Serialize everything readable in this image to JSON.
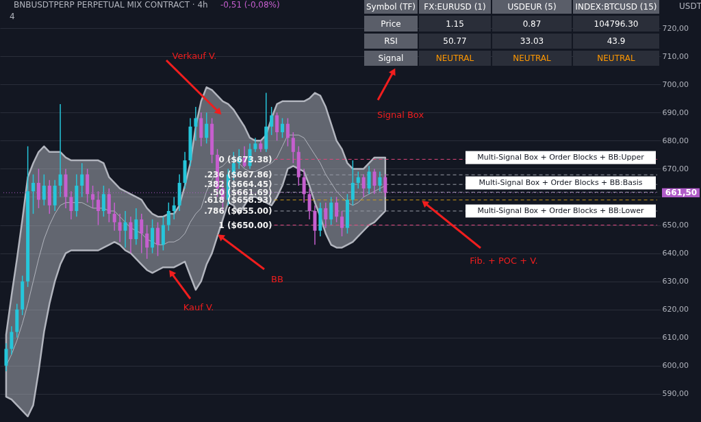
{
  "chart_data": {
    "type": "candlestick",
    "title": "BNBUSDTPERP PERPETUAL MIX CONTRACT · 4h",
    "categories": [
      null,
      null,
      null,
      null,
      null,
      null,
      null,
      null,
      null,
      null,
      null,
      null,
      null,
      null,
      null,
      null,
      null,
      null,
      null,
      null,
      null,
      null,
      null,
      null,
      null,
      null,
      null,
      null,
      null,
      null,
      null,
      null,
      null,
      null,
      null,
      null,
      null,
      null,
      null,
      null,
      null,
      null,
      null,
      null,
      null,
      null,
      null,
      null,
      null,
      null,
      null,
      null,
      null,
      null,
      null,
      null,
      null,
      null,
      null,
      null,
      null,
      null,
      null,
      null,
      null,
      null,
      null,
      null,
      null,
      null,
      null
    ],
    "ohlc": [
      [
        600,
        608,
        598,
        606
      ],
      [
        606,
        614,
        604,
        612
      ],
      [
        612,
        622,
        610,
        620
      ],
      [
        620,
        632,
        618,
        630
      ],
      [
        630,
        678,
        628,
        662
      ],
      [
        662,
        668,
        654,
        665
      ],
      [
        665,
        670,
        656,
        659
      ],
      [
        659,
        668,
        657,
        664
      ],
      [
        664,
        666,
        654,
        657
      ],
      [
        657,
        666,
        655,
        664
      ],
      [
        664,
        693,
        660,
        668
      ],
      [
        668,
        670,
        656,
        660
      ],
      [
        660,
        662,
        652,
        655
      ],
      [
        655,
        668,
        653,
        664
      ],
      [
        664,
        672,
        660,
        668
      ],
      [
        668,
        670,
        658,
        661
      ],
      [
        661,
        664,
        656,
        659
      ],
      [
        659,
        662,
        650,
        655
      ],
      [
        655,
        664,
        653,
        661
      ],
      [
        661,
        663,
        651,
        654
      ],
      [
        654,
        658,
        648,
        651
      ],
      [
        651,
        654,
        644,
        648
      ],
      [
        648,
        655,
        642,
        651
      ],
      [
        651,
        653,
        640,
        645
      ],
      [
        645,
        656,
        643,
        652
      ],
      [
        652,
        654,
        640,
        647
      ],
      [
        647,
        650,
        638,
        642
      ],
      [
        642,
        652,
        640,
        649
      ],
      [
        649,
        651,
        639,
        643
      ],
      [
        643,
        653,
        641,
        650
      ],
      [
        650,
        658,
        648,
        655
      ],
      [
        655,
        660,
        652,
        657
      ],
      [
        657,
        668,
        655,
        665
      ],
      [
        665,
        676,
        663,
        673
      ],
      [
        673,
        688,
        671,
        685
      ],
      [
        685,
        692,
        680,
        688
      ],
      [
        688,
        690,
        678,
        681
      ],
      [
        681,
        690,
        679,
        686
      ],
      [
        686,
        688,
        672,
        675
      ],
      [
        675,
        677,
        660,
        663
      ],
      [
        663,
        666,
        655,
        659
      ],
      [
        659,
        670,
        657,
        668
      ],
      [
        668,
        676,
        666,
        672
      ],
      [
        672,
        677,
        670,
        674
      ],
      [
        674,
        678,
        670.5,
        671
      ],
      [
        671,
        679,
        670,
        677
      ],
      [
        677,
        681,
        676,
        679
      ],
      [
        679,
        680,
        676,
        677
      ],
      [
        677,
        697,
        676,
        685
      ],
      [
        685,
        692,
        682,
        689
      ],
      [
        689,
        690,
        680,
        683
      ],
      [
        683,
        688,
        681,
        686
      ],
      [
        686,
        688,
        678,
        681
      ],
      [
        681,
        683,
        672,
        676
      ],
      [
        676,
        678,
        664,
        667
      ],
      [
        667,
        670,
        658,
        661
      ],
      [
        661,
        663,
        652,
        655
      ],
      [
        655,
        657,
        643,
        648
      ],
      [
        648,
        658,
        646,
        656
      ],
      [
        656,
        658,
        649,
        652
      ],
      [
        652,
        660,
        650,
        658
      ],
      [
        658,
        660,
        651,
        653
      ],
      [
        653,
        655,
        646,
        649
      ],
      [
        649,
        661,
        647,
        659
      ],
      [
        659,
        673,
        657,
        665
      ],
      [
        665,
        669,
        663,
        667
      ],
      [
        667,
        668,
        660,
        663
      ],
      [
        663,
        671,
        661,
        669
      ],
      [
        669,
        670,
        661,
        664
      ],
      [
        664,
        669,
        662,
        667
      ],
      [
        667,
        668,
        660,
        661.5
      ]
    ],
    "colors": [
      "#26c6da",
      "#26c6da",
      "#26c6da",
      "#26c6da",
      "#26c6da",
      "#26c6da",
      "#c65fcf",
      "#26c6da",
      "#c65fcf",
      "#26c6da",
      "#26c6da",
      "#c65fcf",
      "#c65fcf",
      "#26c6da",
      "#26c6da",
      "#c65fcf",
      "#c65fcf",
      "#c65fcf",
      "#26c6da",
      "#c65fcf",
      "#c65fcf",
      "#c65fcf",
      "#26c6da",
      "#c65fcf",
      "#26c6da",
      "#c65fcf",
      "#c65fcf",
      "#26c6da",
      "#c65fcf",
      "#26c6da",
      "#26c6da",
      "#26c6da",
      "#26c6da",
      "#26c6da",
      "#26c6da",
      "#26c6da",
      "#c65fcf",
      "#26c6da",
      "#c65fcf",
      "#c65fcf",
      "#c65fcf",
      "#26c6da",
      "#26c6da",
      "#26c6da",
      "#c65fcf",
      "#26c6da",
      "#26c6da",
      "#c65fcf",
      "#26c6da",
      "#26c6da",
      "#c65fcf",
      "#26c6da",
      "#c65fcf",
      "#c65fcf",
      "#c65fcf",
      "#c65fcf",
      "#c65fcf",
      "#c65fcf",
      "#26c6da",
      "#c65fcf",
      "#26c6da",
      "#c65fcf",
      "#c65fcf",
      "#26c6da",
      "#26c6da",
      "#26c6da",
      "#c65fcf",
      "#26c6da",
      "#c65fcf",
      "#26c6da",
      "#c65fcf"
    ],
    "series": [
      {
        "type": "line",
        "color": "#b2b5be",
        "values": [
          600,
          604,
          609,
          615,
          622,
          630,
          638,
          645,
          650,
          654,
          657,
          658,
          658,
          658,
          658,
          657,
          656,
          656,
          656,
          655,
          655,
          653,
          651,
          649,
          648,
          647,
          645,
          644,
          643,
          643,
          644,
          644,
          645,
          647,
          651,
          654,
          656,
          662,
          666,
          670,
          671,
          673,
          674,
          672,
          670,
          669,
          669,
          670,
          671,
          672,
          674,
          678,
          682,
          682,
          682,
          681,
          678,
          675,
          672,
          668,
          665,
          662,
          660,
          658,
          657,
          658,
          660,
          661,
          662,
          663,
          664
        ],
        "upper": [
          611,
          625,
          638,
          652,
          667,
          672,
          676,
          678,
          676,
          676,
          676,
          674,
          673,
          673,
          673,
          673,
          673,
          673,
          672,
          667,
          665,
          663,
          662,
          661,
          660,
          659,
          656,
          654,
          653,
          653,
          654,
          654,
          657,
          664,
          672,
          685,
          694,
          699,
          698,
          696,
          694,
          693,
          691,
          688,
          685,
          681,
          680,
          680,
          682,
          688,
          693,
          694,
          694,
          694,
          694,
          694,
          695,
          697,
          696,
          692,
          686,
          680,
          677,
          672,
          670,
          670,
          670,
          672,
          674,
          674,
          674
        ],
        "lower": [
          589,
          588,
          586,
          584,
          582,
          586,
          598,
          612,
          622,
          630,
          636,
          640,
          641,
          641,
          641,
          641,
          641,
          641,
          642,
          643,
          644,
          643,
          641,
          640,
          638,
          636,
          634,
          633,
          634,
          635,
          635,
          635,
          636,
          637,
          632,
          627,
          630,
          636,
          640,
          646,
          652,
          658,
          657,
          654,
          657,
          660,
          660,
          659,
          658,
          657,
          660,
          664,
          670,
          671,
          670,
          669,
          664,
          658,
          653,
          647,
          643,
          642,
          642,
          643,
          644,
          646,
          648,
          650,
          651,
          653,
          655
        ]
      }
    ],
    "ylim": [
      580,
      730
    ],
    "yticks": [
      {
        "value": 590,
        "label": "590,00"
      },
      {
        "value": 600,
        "label": "600,00"
      },
      {
        "value": 610,
        "label": "610,00"
      },
      {
        "value": 620,
        "label": "620,00"
      },
      {
        "value": 630,
        "label": "630,00"
      },
      {
        "value": 640,
        "label": "640,00"
      },
      {
        "value": 650,
        "label": "650,00"
      },
      {
        "value": 660,
        "label": null
      },
      {
        "value": 670,
        "label": "670,00"
      },
      {
        "value": 680,
        "label": "680,00"
      },
      {
        "value": 690,
        "label": "690,00"
      },
      {
        "value": 700,
        "label": "700,00"
      },
      {
        "value": 710,
        "label": "710,00"
      },
      {
        "value": 720,
        "label": "720,00"
      }
    ],
    "grid": "y",
    "ref_lines": [
      {
        "axis": "y",
        "value": 673.38,
        "label": "0 ($673.38)",
        "color": "#e0467c",
        "line_style": "dashed"
      },
      {
        "axis": "y",
        "value": 667.86,
        "label": ".236 ($667.86)",
        "color": "#9a9ea8",
        "line_style": "dashed"
      },
      {
        "axis": "y",
        "value": 664.45,
        "label": ".382 ($664.45)",
        "color": "#9a9ea8",
        "line_style": "dashed"
      },
      {
        "axis": "y",
        "value": 661.69,
        "label": ".50 ($661.69)",
        "color": "#9a9ea8",
        "line_style": "dashed"
      },
      {
        "axis": "y",
        "value": 658.93,
        "label": ".618 ($658.93)",
        "color": "#d4a017",
        "line_style": "dashed"
      },
      {
        "axis": "y",
        "value": 655.0,
        "label": ".786 ($655.00)",
        "color": "#9a9ea8",
        "line_style": "dashed"
      },
      {
        "axis": "y",
        "value": 650.0,
        "label": "1 ($650.00)",
        "color": "#e0467c",
        "line_style": "dashed"
      },
      {
        "axis": "y",
        "value": 661.5,
        "label": "661,50",
        "color": "#b05cc8",
        "line_style": "dotted"
      }
    ],
    "annotations": [
      "Symbol (TF)",
      "FX:EURUSD (1)",
      "USDEUR (5)",
      "INDEX:BTCUSD (15)",
      "Price",
      "1.15",
      "0.87",
      "104796.30",
      "RSI",
      "50.77",
      "33.03",
      "43.9",
      "Signal",
      "NEUTRAL",
      "NEUTRAL",
      "NEUTRAL",
      "Verkauf V.",
      "Signal Box",
      "Kauf V.",
      "BB",
      "Fib. + POC + V.",
      {
        "text": "Multi-Signal Box + Order Blocks + BB:Upper",
        "y": 674
      },
      {
        "text": "Multi-Signal Box + Order Blocks + BB:Basis",
        "y": 665
      },
      {
        "text": "Multi-Signal Box + Order Blocks + BB:Lower",
        "y": 655
      },
      "-0,51 (-0,08%)",
      "4",
      "USDT"
    ]
  }
}
